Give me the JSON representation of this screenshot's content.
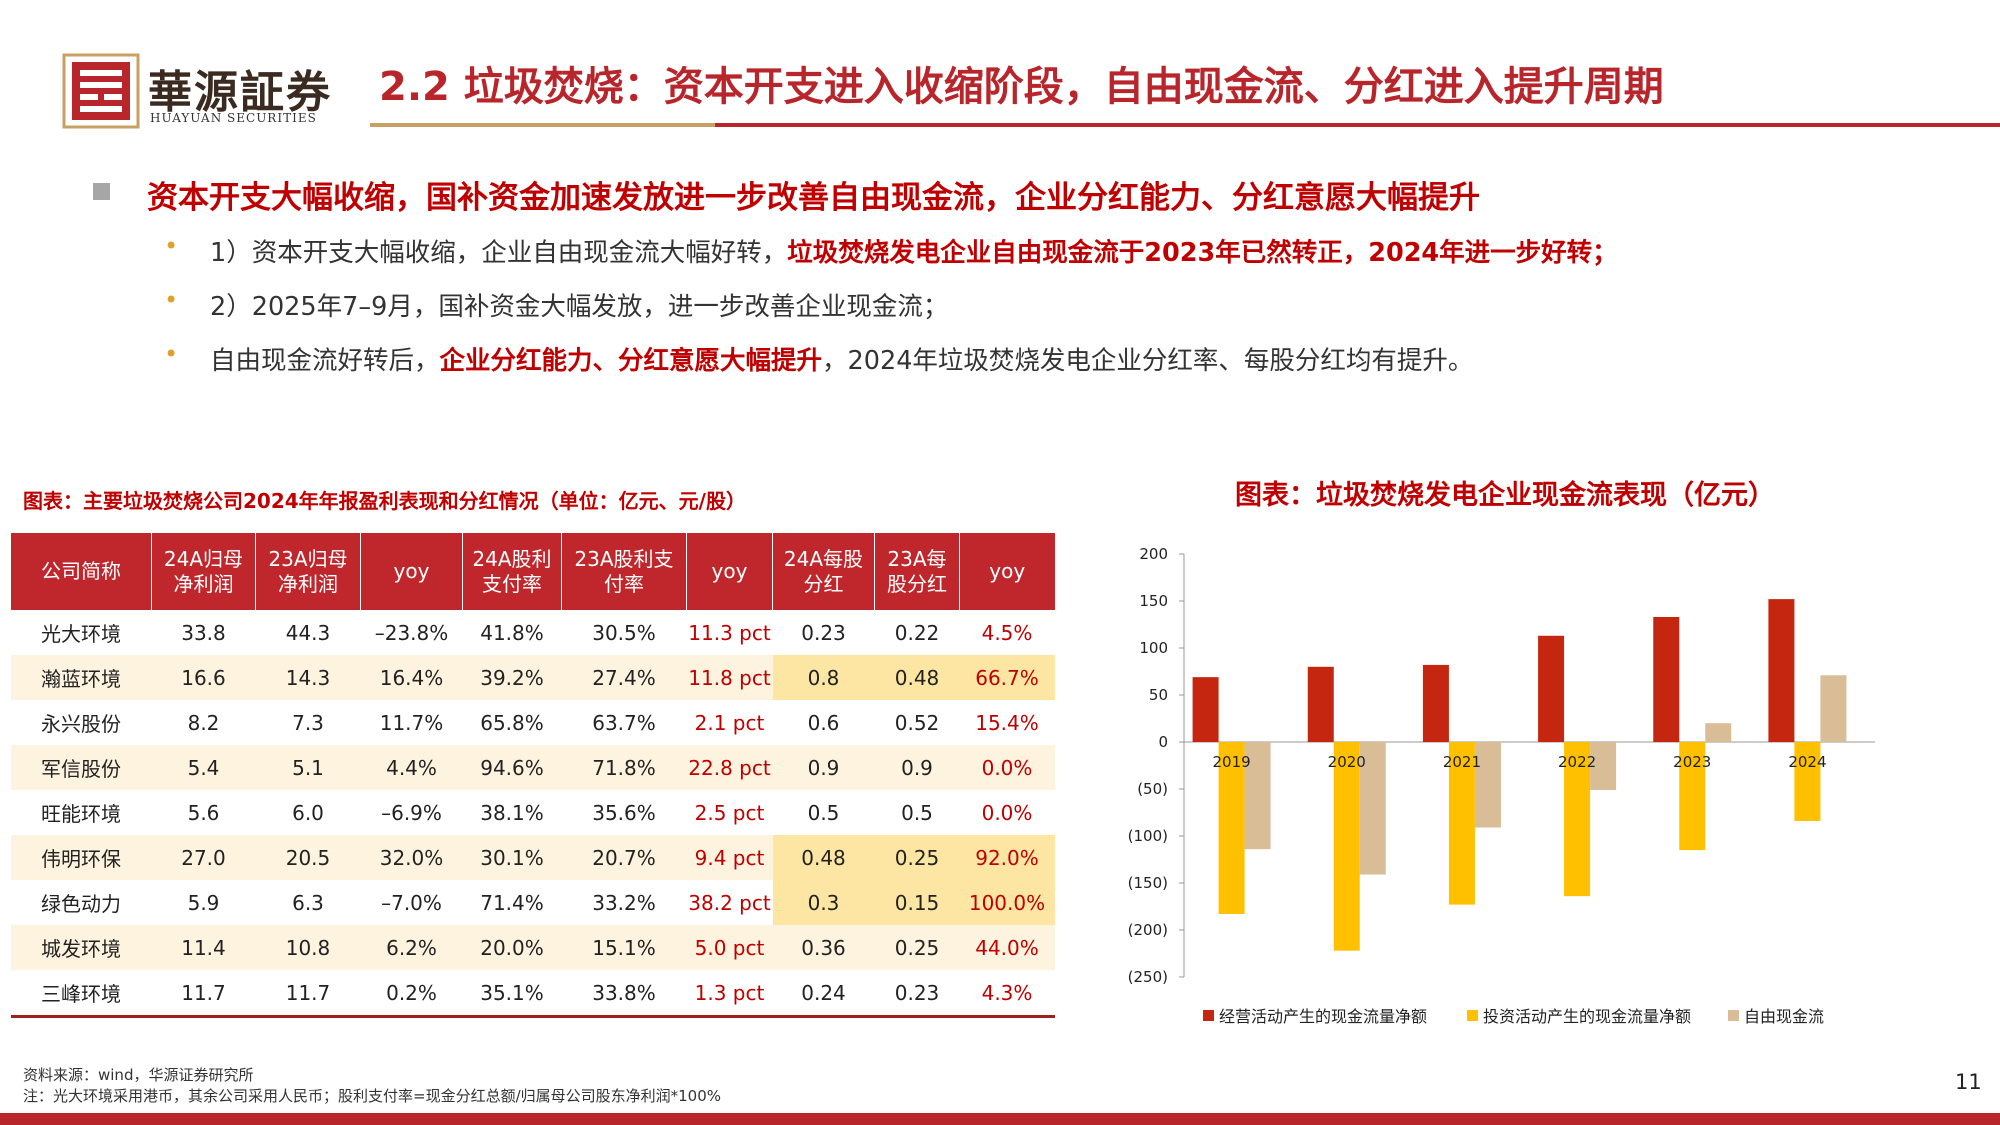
{
  "header": {
    "logo_cn": "華源証券",
    "logo_en": "HUAYUAN SECURITIES",
    "title": "2.2 垃圾焚烧：资本开支进入收缩阶段，自由现金流、分红进入提升周期"
  },
  "bullets": {
    "main": "资本开支大幅收缩，国补资金加速发放进一步改善自由现金流，企业分红能力、分红意愿大幅提升",
    "items": [
      [
        {
          "text": "1）资本开支大幅收缩，企业自由现金流大幅好转，",
          "emphasis": false
        },
        {
          "text": "垃圾焚烧发电企业自由现金流于2023年已然转正，2024年进一步好转；",
          "emphasis": true
        }
      ],
      [
        {
          "text": "2）2025年7–9月，国补资金大幅发放，进一步改善企业现金流；",
          "emphasis": false
        }
      ],
      [
        {
          "text": "自由现金流好转后，",
          "emphasis": false
        },
        {
          "text": "企业分红能力、分红意愿大幅提升",
          "emphasis": true
        },
        {
          "text": "，2024年垃圾焚烧发电企业分红率、每股分红均有提升。",
          "emphasis": false
        }
      ]
    ]
  },
  "table": {
    "caption": "图表：主要垃圾焚烧公司2024年年报盈利表现和分红情况（单位：亿元、元/股）",
    "columns": [
      "公司简称",
      "24A归母净利润",
      "23A归母净利润",
      "yoy",
      "24A股利支付率",
      "23A股利支付率",
      "yoy",
      "24A每股分红",
      "23A每股分红",
      "yoy"
    ],
    "rows": [
      [
        "光大环境",
        "33.8",
        "44.3",
        "–23.8%",
        "41.8%",
        "30.5%",
        "11.3 pct",
        "0.23",
        "0.22",
        "4.5%"
      ],
      [
        "瀚蓝环境",
        "16.6",
        "14.3",
        "16.4%",
        "39.2%",
        "27.4%",
        "11.8 pct",
        "0.8",
        "0.48",
        "66.7%"
      ],
      [
        "永兴股份",
        "8.2",
        "7.3",
        "11.7%",
        "65.8%",
        "63.7%",
        "2.1 pct",
        "0.6",
        "0.52",
        "15.4%"
      ],
      [
        "军信股份",
        "5.4",
        "5.1",
        "4.4%",
        "94.6%",
        "71.8%",
        "22.8 pct",
        "0.9",
        "0.9",
        "0.0%"
      ],
      [
        "旺能环境",
        "5.6",
        "6.0",
        "–6.9%",
        "38.1%",
        "35.6%",
        "2.5 pct",
        "0.5",
        "0.5",
        "0.0%"
      ],
      [
        "伟明环保",
        "27.0",
        "20.5",
        "32.0%",
        "30.1%",
        "20.7%",
        "9.4 pct",
        "0.48",
        "0.25",
        "92.0%"
      ],
      [
        "绿色动力",
        "5.9",
        "6.3",
        "–7.0%",
        "71.4%",
        "33.2%",
        "38.2 pct",
        "0.3",
        "0.15",
        "100.0%"
      ],
      [
        "城发环境",
        "11.4",
        "10.8",
        "6.2%",
        "20.0%",
        "15.1%",
        "5.0 pct",
        "0.36",
        "0.25",
        "44.0%"
      ],
      [
        "三峰环境",
        "11.7",
        "11.7",
        "0.2%",
        "35.1%",
        "33.8%",
        "1.3 pct",
        "0.24",
        "0.23",
        "4.3%"
      ]
    ],
    "red_columns": [
      6,
      9
    ],
    "highlight_rows": [
      1,
      5,
      6
    ],
    "highlight_columns": [
      7,
      8,
      9
    ]
  },
  "chart_data": {
    "type": "bar",
    "title": "图表：垃圾焚烧发电企业现金流表现（亿元）",
    "categories": [
      "2019",
      "2020",
      "2021",
      "2022",
      "2023",
      "2024"
    ],
    "series": [
      {
        "name": "经营活动产生的现金流量净额",
        "color": "#c5260f",
        "values": [
          69,
          80,
          82,
          113,
          133,
          152
        ]
      },
      {
        "name": "投资活动产生的现金流量净额",
        "color": "#ffc000",
        "values": [
          -183,
          -222,
          -173,
          -164,
          -115,
          -84
        ]
      },
      {
        "name": "自由现金流",
        "color": "#d8bd96",
        "values": [
          -114,
          -141,
          -91,
          -51,
          20,
          71
        ]
      }
    ],
    "ylim": [
      -250,
      200
    ],
    "yticks": [
      {
        "value": -250,
        "label": "(250)"
      },
      {
        "value": -200,
        "label": "(200)"
      },
      {
        "value": -150,
        "label": "(150)"
      },
      {
        "value": -100,
        "label": "(100)"
      },
      {
        "value": -50,
        "label": "(50)"
      },
      0,
      50,
      100,
      150,
      200
    ],
    "legend": "bottom"
  },
  "footer": {
    "source": "资料来源：wind，华源证券研究所",
    "note": "注：光大环境采用港币，其余公司采用人民币；股利支付率=现金分红总额/归属母公司股东净利润*100%",
    "page": "11"
  }
}
